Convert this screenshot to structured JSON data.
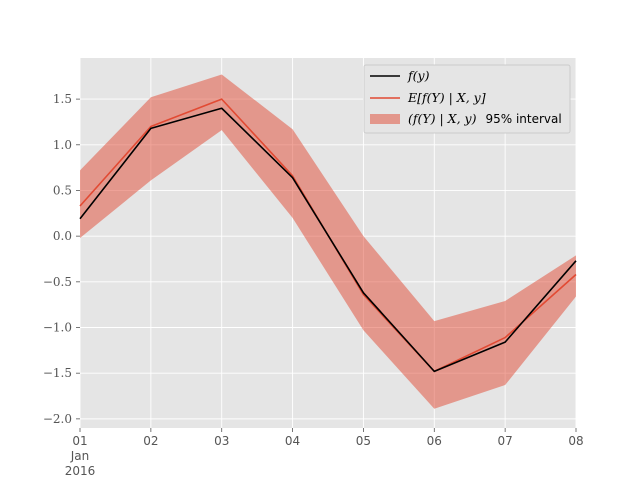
{
  "chart_data": {
    "type": "line",
    "x": [
      "01",
      "02",
      "03",
      "04",
      "05",
      "06",
      "07",
      "08"
    ],
    "x_secondary_label": [
      "Jan",
      "2016"
    ],
    "ylim": [
      -2.1,
      1.95
    ],
    "yticks": [
      {
        "value": -2.0,
        "label": "−2.0"
      },
      {
        "value": -1.5,
        "label": "−1.5"
      },
      {
        "value": -1.0,
        "label": "−1.0"
      },
      {
        "value": -0.5,
        "label": "−0.5"
      },
      {
        "value": 0.0,
        "label": "0.0"
      },
      {
        "value": 0.5,
        "label": "0.5"
      },
      {
        "value": 1.0,
        "label": "1.0"
      },
      {
        "value": 1.5,
        "label": "1.5"
      }
    ],
    "grid": true,
    "legend_position": "top-right",
    "series": [
      {
        "name": "f(y)",
        "kind": "line",
        "color": "#000000",
        "values": [
          0.19,
          1.18,
          1.4,
          0.64,
          -0.62,
          -1.48,
          -1.16,
          -0.27
        ]
      },
      {
        "name": "E[f(Y) | X, y]",
        "kind": "line",
        "color": "#E24A33",
        "values": [
          0.33,
          1.2,
          1.5,
          0.66,
          -0.64,
          -1.48,
          -1.11,
          -0.42
        ]
      },
      {
        "name_parts": [
          "(f(Y) | X, y)",
          "95% interval"
        ],
        "kind": "band",
        "color": "#E24A33",
        "lower": [
          -0.02,
          0.61,
          1.16,
          0.2,
          -1.03,
          -1.89,
          -1.63,
          -0.66
        ],
        "upper": [
          0.72,
          1.52,
          1.77,
          1.17,
          0.0,
          -0.93,
          -0.71,
          -0.21
        ]
      }
    ]
  }
}
